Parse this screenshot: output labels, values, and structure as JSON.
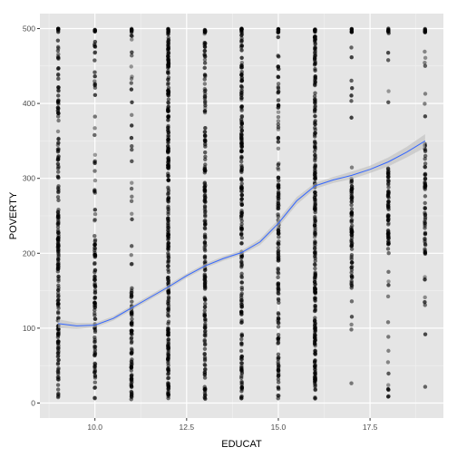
{
  "chart_data": {
    "type": "scatter",
    "title": "",
    "xlabel": "EDUCAT",
    "ylabel": "POVERTY",
    "xlim": [
      8.5,
      19.5
    ],
    "ylim": [
      -20,
      520
    ],
    "x_ticks": [
      10.0,
      12.5,
      15.0,
      17.5
    ],
    "x_tick_labels": [
      "10.0",
      "12.5",
      "15.0",
      "17.5"
    ],
    "y_ticks": [
      0,
      100,
      200,
      300,
      400,
      500
    ],
    "y_tick_labels": [
      "0",
      "100",
      "200",
      "300",
      "400",
      "500"
    ],
    "grid": true,
    "legend": "none",
    "colors": {
      "panel": "#e5e5e5",
      "grid_major": "#ffffff",
      "grid_minor": "#f2f2f2",
      "points": "#000000",
      "smooth_line": "#3366ff",
      "confidence_band": "#bcbcbc"
    },
    "point_columns": [
      {
        "x": 9,
        "dense": [
          5,
          310
        ],
        "sparse": [
          310,
          500
        ],
        "density": 0.55
      },
      {
        "x": 10,
        "dense": [
          5,
          220
        ],
        "sparse": [
          220,
          500
        ],
        "density": 0.35
      },
      {
        "x": 11,
        "dense": [
          5,
          160
        ],
        "sparse": [
          160,
          500
        ],
        "density": 0.3
      },
      {
        "x": 12,
        "dense": [
          5,
          500
        ],
        "sparse": [
          5,
          500
        ],
        "density": 0.85
      },
      {
        "x": 13,
        "dense": [
          5,
          330
        ],
        "sparse": [
          330,
          500
        ],
        "density": 0.55
      },
      {
        "x": 14,
        "dense": [
          5,
          360
        ],
        "sparse": [
          360,
          500
        ],
        "density": 0.6
      },
      {
        "x": 15,
        "dense": [
          5,
          300
        ],
        "sparse": [
          300,
          500
        ],
        "density": 0.45
      },
      {
        "x": 16,
        "dense": [
          5,
          500
        ],
        "sparse": [
          5,
          500
        ],
        "density": 0.75
      },
      {
        "x": 17,
        "dense": [
          150,
          300
        ],
        "sparse": [
          5,
          500
        ],
        "density": 0.25
      },
      {
        "x": 18,
        "dense": [
          200,
          320
        ],
        "sparse": [
          5,
          500
        ],
        "density": 0.25
      },
      {
        "x": 19,
        "dense": [
          200,
          350
        ],
        "sparse": [
          15,
          500
        ],
        "density": 0.2
      }
    ],
    "smooth_line": {
      "x": [
        9.0,
        9.5,
        10.0,
        10.5,
        11.0,
        11.5,
        12.0,
        12.5,
        13.0,
        13.5,
        14.0,
        14.5,
        15.0,
        15.5,
        16.0,
        16.5,
        17.0,
        17.5,
        18.0,
        18.5,
        19.0
      ],
      "y": [
        106,
        103,
        104,
        113,
        127,
        141,
        155,
        170,
        183,
        193,
        201,
        215,
        240,
        270,
        290,
        298,
        304,
        312,
        322,
        335,
        350
      ],
      "band_halfwidth": [
        6,
        4,
        3,
        3,
        3,
        3,
        3,
        3,
        3,
        3,
        3,
        4,
        5,
        5,
        4,
        4,
        5,
        5,
        6,
        7,
        9
      ]
    }
  }
}
